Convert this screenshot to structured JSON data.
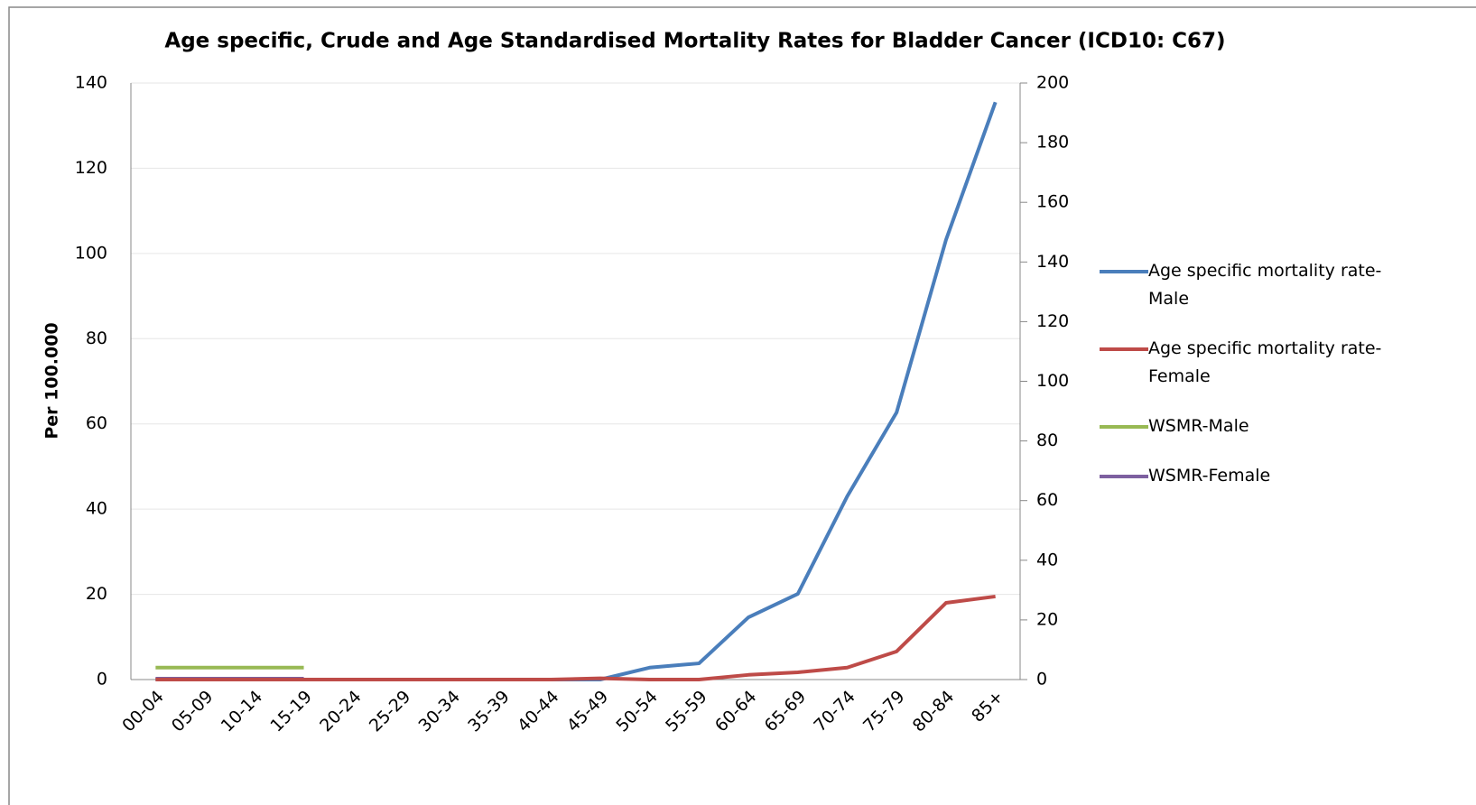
{
  "chart_data": {
    "type": "line",
    "title": "Age specific, Crude and Age Standardised Mortality Rates for Bladder Cancer (ICD10: C67)",
    "y_label": "Per 100.000",
    "categories": [
      "00-04",
      "05-09",
      "10-14",
      "15-19",
      "20-24",
      "25-29",
      "30-34",
      "35-39",
      "40-44",
      "45-49",
      "50-54",
      "55-59",
      "60-64",
      "65-69",
      "70-74",
      "75-79",
      "80-84",
      "85+"
    ],
    "series": [
      {
        "name": "Age specific mortality rate-Male",
        "color": "#4a7ebb",
        "values": [
          0,
          0,
          0,
          0,
          0,
          0,
          0,
          0,
          0,
          0,
          2.8,
          3.8,
          14.6,
          20.1,
          43,
          62.7,
          103.2,
          135.5
        ]
      },
      {
        "name": "Age specific mortality rate-Female",
        "color": "#be4b48",
        "values": [
          0,
          0,
          0,
          0,
          0,
          0,
          0,
          0,
          0,
          0.3,
          0,
          0,
          1.1,
          1.7,
          2.8,
          6.6,
          18,
          19.5
        ]
      },
      {
        "name": "WSMR-Male",
        "color": "#98b954",
        "values": [
          2.8,
          2.8,
          2.8,
          2.8,
          null,
          null,
          null,
          null,
          null,
          null,
          null,
          null,
          null,
          null,
          null,
          null,
          null,
          null
        ]
      },
      {
        "name": "WSMR-Female",
        "color": "#7d60a0",
        "values": [
          0.2,
          0.2,
          0.2,
          0.2,
          null,
          null,
          null,
          null,
          null,
          null,
          null,
          null,
          null,
          null,
          null,
          null,
          null,
          null
        ]
      }
    ],
    "ylim": [
      0,
      140
    ],
    "yticks": [
      0,
      20,
      40,
      60,
      80,
      100,
      120,
      140
    ],
    "y2lim": [
      0,
      200
    ],
    "y2ticks": [
      0,
      20,
      40,
      60,
      80,
      100,
      120,
      140,
      160,
      180,
      200
    ],
    "grid": true,
    "legend": "right"
  }
}
